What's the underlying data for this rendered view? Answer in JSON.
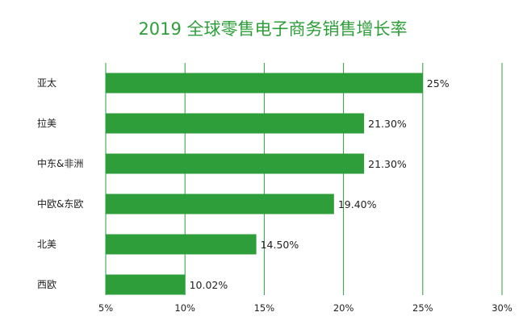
{
  "chart_data": {
    "type": "bar",
    "orientation": "horizontal",
    "title": "2019 全球零售电子商务销售增长率",
    "categories": [
      "亚太",
      "拉美",
      "中东&非洲",
      "中欧&东欧",
      "北美",
      "西欧"
    ],
    "values": [
      25,
      21.3,
      21.3,
      19.4,
      14.5,
      10.02
    ],
    "value_labels": [
      "25%",
      "21.30%",
      "21.30%",
      "19.40%",
      "14.50%",
      "10.02%"
    ],
    "xlim": [
      5,
      30
    ],
    "x_ticks": [
      5,
      10,
      15,
      20,
      25,
      30
    ],
    "x_tick_labels": [
      "5%",
      "10%",
      "15%",
      "20%",
      "25%",
      "30%"
    ],
    "grid": "vertical",
    "legend": "none",
    "colors": {
      "bar": "#2e9e3a",
      "grid": "#2e9e3a",
      "title": "#2e9e3a"
    }
  }
}
